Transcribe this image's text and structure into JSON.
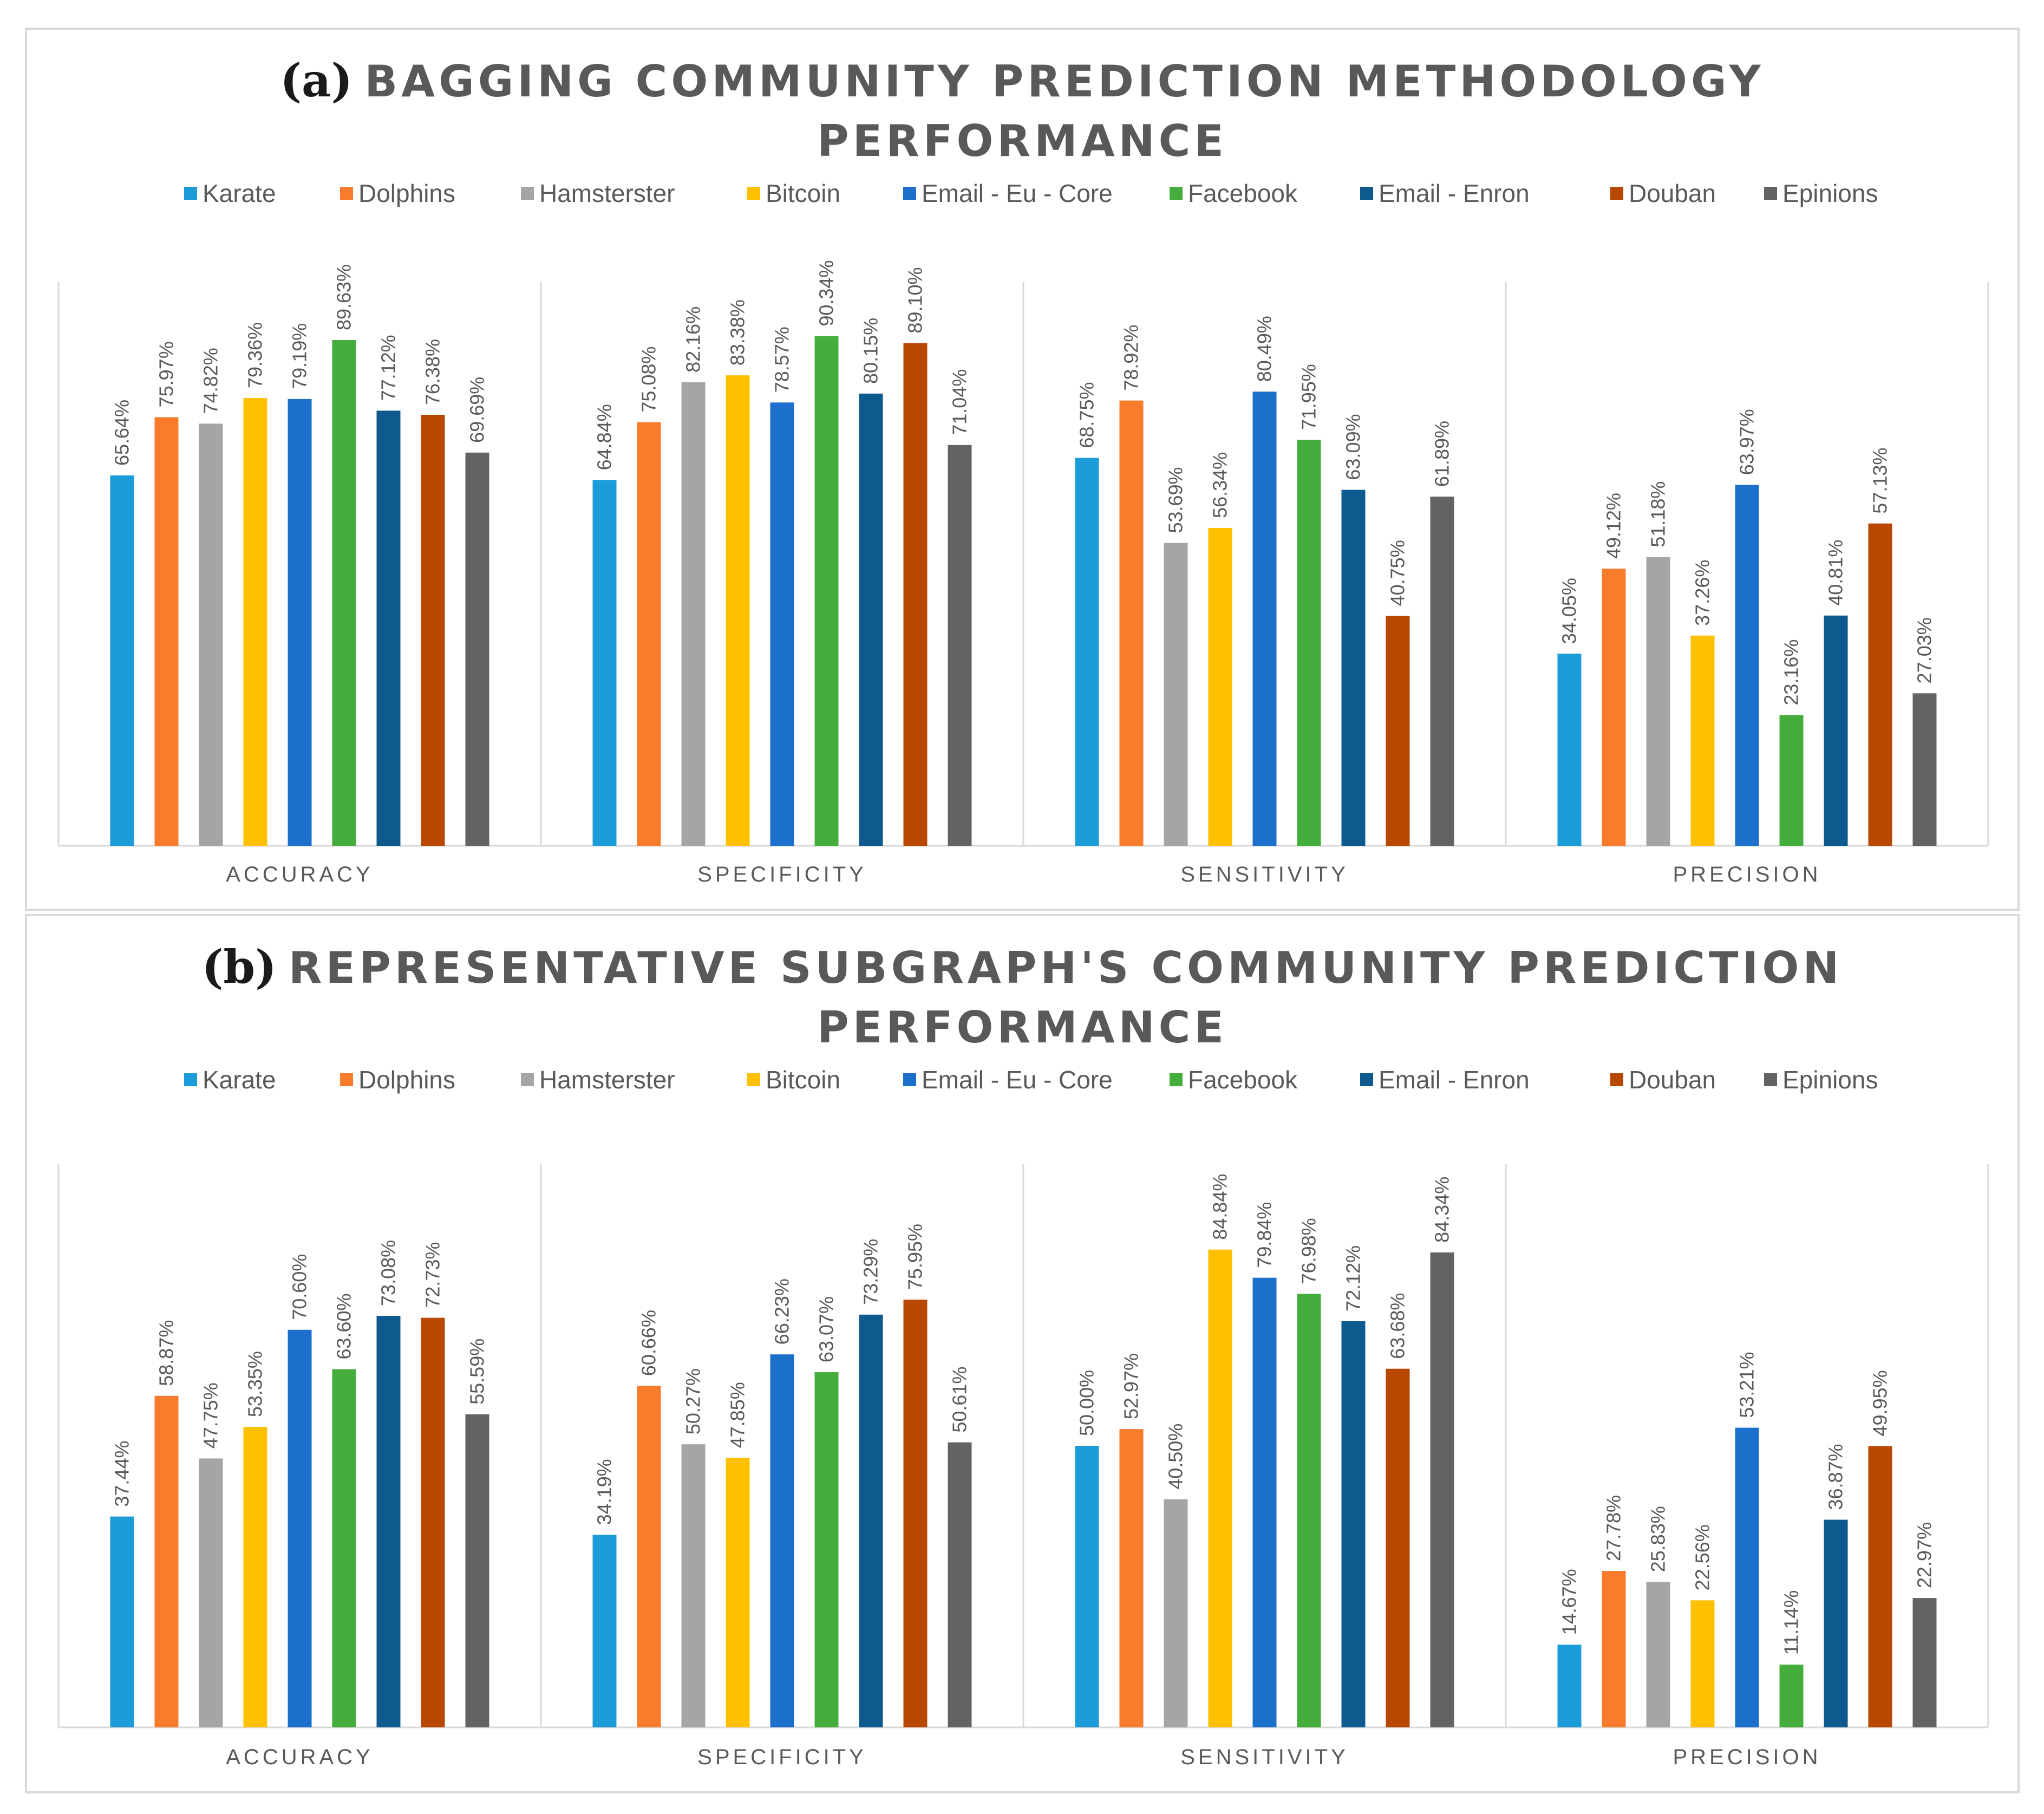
{
  "colors": {
    "Karate": "#1b9bd8",
    "Dolphins": "#f87c2b",
    "Hamsterster": "#a5a5a5",
    "Bitcoin": "#ffc000",
    "Email - Eu - Core": "#1d6fcc",
    "Facebook": "#45ad3b",
    "Email - Enron": "#0e5a8e",
    "Douban": "#b84800",
    "Epinions": "#636363"
  },
  "chart_data": [
    {
      "type": "bar",
      "panel_label": "(a)",
      "title_line1": "BAGGING COMMUNITY PREDICTION METHODOLOGY",
      "title_line2": "PERFORMANCE",
      "categories": [
        "ACCURACY",
        "SPECIFICITY",
        "SENSITIVITY",
        "PRECISION"
      ],
      "series": [
        {
          "name": "Karate",
          "values": [
            65.64,
            64.84,
            68.75,
            34.05
          ]
        },
        {
          "name": "Dolphins",
          "values": [
            75.97,
            75.08,
            78.92,
            49.12
          ]
        },
        {
          "name": "Hamsterster",
          "values": [
            74.82,
            82.16,
            53.69,
            51.18
          ]
        },
        {
          "name": "Bitcoin",
          "values": [
            79.36,
            83.38,
            56.34,
            37.26
          ]
        },
        {
          "name": "Email - Eu - Core",
          "values": [
            79.19,
            78.57,
            80.49,
            63.97
          ]
        },
        {
          "name": "Facebook",
          "values": [
            89.63,
            90.34,
            71.95,
            23.16
          ]
        },
        {
          "name": "Email - Enron",
          "values": [
            77.12,
            80.15,
            63.09,
            40.81
          ]
        },
        {
          "name": "Douban",
          "values": [
            76.38,
            89.1,
            40.75,
            57.13
          ]
        },
        {
          "name": "Epinions",
          "values": [
            69.69,
            71.04,
            61.89,
            27.03
          ]
        }
      ],
      "labels": [
        [
          "65.64%",
          "64.84%",
          "68.75%",
          "34.05%"
        ],
        [
          "75.97%",
          "75.08%",
          "78.92%",
          "49.12%"
        ],
        [
          "74.82%",
          "82.16%",
          "53.69%",
          "51.18%"
        ],
        [
          "79.36%",
          "83.38%",
          "56.34%",
          "37.26%"
        ],
        [
          "79.19%",
          "78.57%",
          "80.49%",
          "63.97%"
        ],
        [
          "89.63%",
          "90.34%",
          "71.95%",
          "23.16%"
        ],
        [
          "77.12%",
          "80.15%",
          "63.09%",
          "40.81%"
        ],
        [
          "76.38%",
          "89.10%",
          "40.75%",
          "57.13%"
        ],
        [
          "69.69%",
          "71.04%",
          "61.89%",
          "27.03%"
        ]
      ],
      "ylim": [
        0,
        100
      ],
      "legend_position": "top"
    },
    {
      "type": "bar",
      "panel_label": "(b)",
      "title_line1": "REPRESENTATIVE SUBGRAPH'S COMMUNITY PREDICTION",
      "title_line2": "PERFORMANCE",
      "categories": [
        "ACCURACY",
        "SPECIFICITY",
        "SENSITIVITY",
        "PRECISION"
      ],
      "series": [
        {
          "name": "Karate",
          "values": [
            37.44,
            34.19,
            50.0,
            14.67
          ]
        },
        {
          "name": "Dolphins",
          "values": [
            58.87,
            60.66,
            52.97,
            27.78
          ]
        },
        {
          "name": "Hamsterster",
          "values": [
            47.75,
            50.27,
            40.5,
            25.83
          ]
        },
        {
          "name": "Bitcoin",
          "values": [
            53.35,
            47.85,
            84.84,
            22.56
          ]
        },
        {
          "name": "Email - Eu - Core",
          "values": [
            70.6,
            66.23,
            79.84,
            53.21
          ]
        },
        {
          "name": "Facebook",
          "values": [
            63.6,
            63.07,
            76.98,
            11.14
          ]
        },
        {
          "name": "Email - Enron",
          "values": [
            73.08,
            73.29,
            72.12,
            36.87
          ]
        },
        {
          "name": "Douban",
          "values": [
            72.73,
            75.95,
            63.68,
            49.95
          ]
        },
        {
          "name": "Epinions",
          "values": [
            55.59,
            50.61,
            84.34,
            22.97
          ]
        }
      ],
      "labels": [
        [
          "37.44%",
          "34.19%",
          "50.00%",
          "14.67%"
        ],
        [
          "58.87%",
          "60.66%",
          "52.97%",
          "27.78%"
        ],
        [
          "47.75%",
          "50.27%",
          "40.50%",
          "25.83%"
        ],
        [
          "53.35%",
          "47.85%",
          "84.84%",
          "22.56%"
        ],
        [
          "70.60%",
          "66.23%",
          "79.84%",
          "53.21%"
        ],
        [
          "63.60%",
          "63.07%",
          "76.98%",
          "11.14%"
        ],
        [
          "73.08%",
          "73.29%",
          "72.12%",
          "36.87%"
        ],
        [
          "72.73%",
          "75.95%",
          "63.68%",
          "49.95%"
        ],
        [
          "55.59%",
          "50.61%",
          "84.34%",
          "22.97%"
        ]
      ],
      "ylim": [
        0,
        100
      ],
      "legend_position": "top"
    }
  ]
}
